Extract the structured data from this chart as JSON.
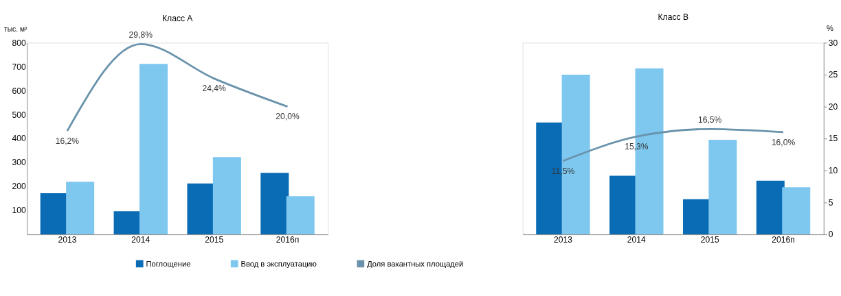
{
  "chart_data": [
    {
      "type": "bar",
      "title": "Класс А",
      "ylabel": "тыс. м²",
      "categories": [
        "2013",
        "2014",
        "2015",
        "2016п"
      ],
      "ylim": [
        0,
        800
      ],
      "yticks": [
        100,
        200,
        300,
        400,
        500,
        600,
        700,
        800
      ],
      "legend": "bottom",
      "series": [
        {
          "name": "Поглощение",
          "color": "#0a6cb5",
          "values": [
            172,
            97,
            213,
            257
          ]
        },
        {
          "name": "Ввод в эксплуатацию",
          "color": "#7ec8f0",
          "values": [
            220,
            712,
            323,
            160
          ]
        },
        {
          "name": "Доля вакантных площадей",
          "type": "line",
          "axis": "y2",
          "color": "#6a93ab",
          "values": [
            16.2,
            29.8,
            24.4,
            20.0
          ],
          "value_labels": [
            "16,2%",
            "29,8%",
            "24,4%",
            "20,0%"
          ]
        }
      ]
    },
    {
      "type": "bar",
      "title": "Класс В",
      "y2label": "%",
      "categories": [
        "2013",
        "2014",
        "2015",
        "2016п"
      ],
      "ylim": [
        0,
        800
      ],
      "y2lim": [
        0,
        30
      ],
      "y2ticks": [
        0,
        5,
        10,
        15,
        20,
        25,
        30
      ],
      "series": [
        {
          "color": "#0a6cb5",
          "values": [
            467,
            245,
            147,
            224
          ]
        },
        {
          "color": "#7ec8f0",
          "values": [
            667,
            693,
            395,
            197
          ]
        },
        {
          "type": "line",
          "axis": "y2",
          "color": "#6a93ab",
          "values": [
            11.5,
            15.3,
            16.5,
            16.0
          ],
          "value_labels": [
            "11,5%",
            "15,3%",
            "16,5%",
            "16,0%"
          ]
        }
      ]
    }
  ]
}
